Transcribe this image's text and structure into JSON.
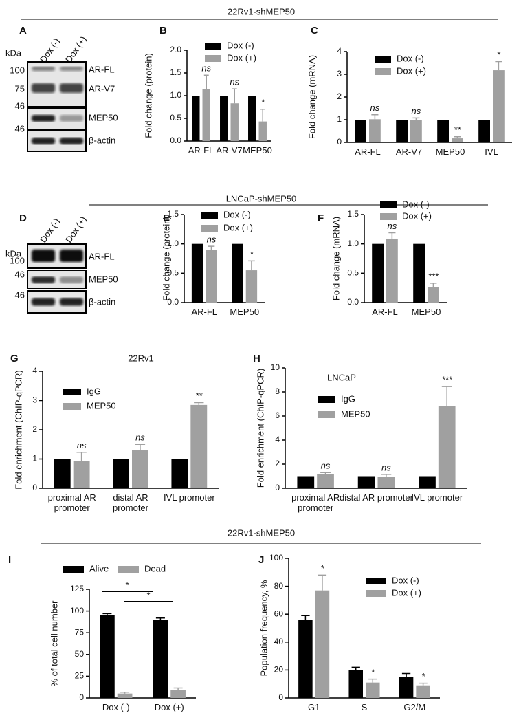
{
  "headers": [
    "22Rv1-shMEP50",
    "LNCaP-shMEP50",
    "22Rv1-shMEP50"
  ],
  "panels": [
    "A",
    "B",
    "C",
    "D",
    "E",
    "F",
    "G",
    "H",
    "I",
    "J"
  ],
  "blots": [
    {
      "unit": "kDa",
      "lanes": [
        "Dox (-)",
        "Dox (+)"
      ],
      "markers": [
        "100",
        "75",
        "46",
        "46"
      ],
      "proteins": [
        "AR-FL",
        "AR-V7",
        "MEP50",
        "β-actin"
      ]
    },
    {
      "unit": "kDa",
      "lanes": [
        "Dox (-)",
        "Dox (+)"
      ],
      "markers": [
        "100",
        "46",
        "46"
      ],
      "proteins": [
        "AR-FL",
        "MEP50",
        "β-actin"
      ]
    }
  ],
  "chart_data": [
    {
      "type": "bar",
      "y_label": "Fold change (protein)",
      "categories": [
        "AR-FL",
        "AR-V7",
        "MEP50"
      ],
      "series": [
        {
          "name": "Dox (-)",
          "color": "#000000",
          "values": [
            1,
            1,
            1
          ]
        },
        {
          "name": "Dox (+)",
          "color": "#a0a0a0",
          "values": [
            1.15,
            0.83,
            0.43
          ],
          "errors": [
            0.3,
            0.32,
            0.27
          ],
          "annotations": [
            "ns",
            "ns",
            "*"
          ]
        }
      ],
      "ylim": [
        0,
        2
      ],
      "yticks": [
        {
          "value": 0,
          "label": "0.0"
        },
        {
          "value": 0.5,
          "label": "0.5"
        },
        {
          "value": 1,
          "label": "1.0"
        },
        {
          "value": 1.5,
          "label": "1.5"
        },
        {
          "value": 2,
          "label": "2.0"
        }
      ]
    },
    {
      "type": "bar",
      "y_label": "Fold change (mRNA)",
      "categories": [
        "AR-FL",
        "AR-V7",
        "MEP50",
        "IVL"
      ],
      "series": [
        {
          "name": "Dox (-)",
          "color": "#000000",
          "values": [
            1,
            1,
            1,
            1
          ]
        },
        {
          "name": "Dox (+)",
          "color": "#a0a0a0",
          "values": [
            1.02,
            0.98,
            0.18,
            3.18
          ],
          "errors": [
            0.2,
            0.1,
            0.07,
            0.38
          ],
          "annotations": [
            "ns",
            "ns",
            "**",
            "*"
          ]
        }
      ],
      "ylim": [
        0,
        4
      ],
      "yticks": [
        0,
        1,
        2,
        3,
        4
      ]
    },
    {
      "type": "bar",
      "y_label": "Fold change (protein)",
      "categories": [
        "AR-FL",
        "MEP50"
      ],
      "series": [
        {
          "name": "Dox (-)",
          "color": "#000000",
          "values": [
            1,
            1
          ]
        },
        {
          "name": "Dox (+)",
          "color": "#a0a0a0",
          "values": [
            0.9,
            0.55
          ],
          "errors": [
            0.06,
            0.16
          ],
          "annotations": [
            "ns",
            "*"
          ]
        }
      ],
      "ylim": [
        0,
        1.5
      ],
      "yticks": [
        {
          "value": 0,
          "label": "0.0"
        },
        {
          "value": 0.5,
          "label": "0.5"
        },
        {
          "value": 1,
          "label": "1.0"
        },
        {
          "value": 1.5,
          "label": "1.5"
        }
      ]
    },
    {
      "type": "bar",
      "y_label": "Fold change (mRNA)",
      "categories": [
        "AR-FL",
        "MEP50"
      ],
      "series": [
        {
          "name": "Dox (-)",
          "color": "#000000",
          "values": [
            1,
            1
          ]
        },
        {
          "name": "Dox (+)",
          "color": "#a0a0a0",
          "values": [
            1.09,
            0.26
          ],
          "errors": [
            0.1,
            0.07
          ],
          "annotations": [
            "ns",
            "***"
          ]
        }
      ],
      "ylim": [
        0,
        1.5
      ],
      "yticks": [
        {
          "value": 0,
          "label": "0.0"
        },
        {
          "value": 0.5,
          "label": "0.5"
        },
        {
          "value": 1,
          "label": "1.0"
        },
        {
          "value": 1.5,
          "label": "1.5"
        }
      ]
    },
    {
      "type": "bar",
      "title": "22Rv1",
      "y_label": "Fold enrichment (ChIP-qPCR)",
      "categories": [
        "proximal AR promoter",
        "distal AR promoter",
        "IVL promoter"
      ],
      "series": [
        {
          "name": "IgG",
          "color": "#000000",
          "values": [
            1,
            1,
            1
          ]
        },
        {
          "name": "MEP50",
          "color": "#a0a0a0",
          "values": [
            0.93,
            1.3,
            2.85
          ],
          "errors": [
            0.3,
            0.2,
            0.08
          ],
          "annotations": [
            "ns",
            "ns",
            "**"
          ]
        }
      ],
      "ylim": [
        0,
        4
      ],
      "yticks": [
        0,
        1,
        2,
        3,
        4
      ]
    },
    {
      "type": "bar",
      "title": "LNCaP",
      "y_label": "Fold enrichment (ChIP-qPCR)",
      "categories": [
        "proximal AR promoter",
        "distal AR promoter",
        "IVL promoter"
      ],
      "series": [
        {
          "name": "IgG",
          "color": "#000000",
          "values": [
            1,
            1,
            1
          ]
        },
        {
          "name": "MEP50",
          "color": "#a0a0a0",
          "values": [
            1.15,
            0.95,
            6.8
          ],
          "errors": [
            0.15,
            0.2,
            1.65
          ],
          "annotations": [
            "ns",
            "ns",
            "***"
          ]
        }
      ],
      "ylim": [
        0,
        10
      ],
      "yticks": [
        0,
        2,
        4,
        6,
        8,
        10
      ]
    },
    {
      "type": "bar",
      "y_label": "% of total cell number",
      "categories": [
        "Dox (-)",
        "Dox (+)"
      ],
      "series": [
        {
          "name": "Alive",
          "color": "#000000",
          "values": [
            95,
            90
          ],
          "errors": [
            2,
            2
          ]
        },
        {
          "name": "Dead",
          "color": "#a0a0a0",
          "values": [
            5,
            9
          ],
          "errors": [
            1.5,
            2.5
          ]
        }
      ],
      "comparisons": [
        "*",
        "*"
      ],
      "ylim": [
        0,
        125
      ],
      "yticks": [
        0,
        25,
        50,
        75,
        100,
        125
      ]
    },
    {
      "type": "bar",
      "y_label": "Population frequency, %",
      "categories": [
        "G1",
        "S",
        "G2/M"
      ],
      "series": [
        {
          "name": "Dox (-)",
          "color": "#000000",
          "values": [
            56,
            20,
            15
          ],
          "errors": [
            3,
            2,
            2.5
          ]
        },
        {
          "name": "Dox (+)",
          "color": "#a0a0a0",
          "values": [
            77,
            11,
            9
          ],
          "errors": [
            11,
            2.5,
            1.5
          ],
          "annotations": [
            "*",
            "*",
            "*"
          ]
        }
      ],
      "ylim": [
        0,
        100
      ],
      "yticks": [
        0,
        20,
        40,
        60,
        80,
        100
      ]
    }
  ]
}
